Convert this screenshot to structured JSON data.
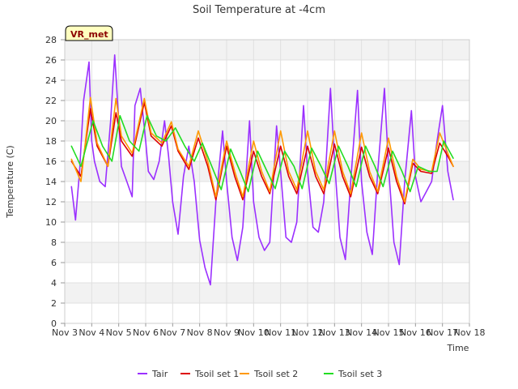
{
  "chart_data": {
    "type": "line",
    "title": "Soil Temperature at -4cm",
    "xlabel": "Time",
    "ylabel": "Temperature (C)",
    "badge": "VR_met",
    "x_ticks": [
      "Nov 3",
      "Nov 4",
      "Nov 5",
      "Nov 6",
      "Nov 7",
      "Nov 8",
      "Nov 9",
      "Nov 10",
      "Nov 11",
      "Nov 12",
      "Nov 13",
      "Nov 14",
      "Nov 15",
      "Nov 16",
      "Nov 17",
      "Nov 18"
    ],
    "xlim_days": [
      3,
      18
    ],
    "ylim": [
      0,
      28
    ],
    "y_ticks": [
      0,
      2,
      4,
      6,
      8,
      10,
      12,
      14,
      16,
      18,
      20,
      22,
      24,
      26,
      28
    ],
    "grid": true,
    "legend_position": "bottom",
    "x_unit": "day of November",
    "series": [
      {
        "name": "Tair",
        "color": "#9b30ff",
        "x": [
          3.25,
          3.4,
          3.55,
          3.7,
          3.9,
          4.0,
          4.1,
          4.3,
          4.5,
          4.7,
          4.85,
          5.0,
          5.1,
          5.3,
          5.5,
          5.6,
          5.8,
          6.0,
          6.1,
          6.3,
          6.5,
          6.7,
          6.85,
          7.0,
          7.2,
          7.4,
          7.6,
          7.8,
          8.0,
          8.2,
          8.4,
          8.6,
          8.85,
          9.0,
          9.2,
          9.4,
          9.6,
          9.85,
          10.0,
          10.2,
          10.4,
          10.6,
          10.85,
          11.0,
          11.2,
          11.4,
          11.6,
          11.85,
          12.0,
          12.2,
          12.4,
          12.6,
          12.85,
          13.0,
          13.2,
          13.4,
          13.6,
          13.85,
          14.0,
          14.2,
          14.4,
          14.6,
          14.85,
          15.0,
          15.2,
          15.4,
          15.6,
          15.85,
          16.0,
          16.2,
          16.4,
          16.6,
          16.8,
          17.0,
          17.2,
          17.4
        ],
        "values": [
          13.5,
          10.2,
          15.0,
          22.0,
          25.8,
          18.0,
          16.0,
          14.0,
          13.5,
          20.0,
          26.5,
          20.0,
          15.5,
          14.0,
          12.5,
          21.5,
          23.2,
          18.0,
          15.0,
          14.2,
          16.0,
          20.0,
          16.5,
          12.0,
          8.8,
          14.5,
          17.5,
          14.0,
          8.2,
          5.5,
          3.8,
          12.0,
          19.0,
          14.0,
          8.5,
          6.2,
          9.5,
          20.0,
          12.0,
          8.5,
          7.2,
          8.0,
          19.5,
          15.0,
          8.5,
          8.0,
          10.0,
          21.5,
          15.0,
          9.5,
          9.0,
          12.0,
          23.2,
          16.0,
          8.5,
          6.3,
          14.0,
          23.0,
          14.0,
          9.0,
          6.8,
          15.0,
          23.2,
          15.5,
          8.0,
          5.8,
          14.0,
          21.0,
          14.5,
          12.0,
          13.0,
          14.0,
          18.0,
          21.5,
          15.0,
          12.2
        ]
      },
      {
        "name": "Tsoil set 1",
        "color": "#dd0000",
        "x": [
          3.25,
          3.6,
          3.95,
          4.2,
          4.6,
          4.9,
          5.1,
          5.5,
          5.95,
          6.2,
          6.6,
          6.95,
          7.2,
          7.6,
          7.95,
          8.3,
          8.6,
          9.0,
          9.3,
          9.6,
          10.0,
          10.3,
          10.6,
          11.0,
          11.3,
          11.6,
          12.0,
          12.3,
          12.6,
          13.0,
          13.3,
          13.6,
          14.0,
          14.3,
          14.6,
          15.0,
          15.3,
          15.6,
          15.9,
          16.2,
          16.6,
          16.9,
          17.2,
          17.4
        ],
        "values": [
          16.0,
          14.5,
          21.2,
          17.5,
          15.5,
          20.8,
          18.0,
          16.5,
          21.8,
          18.5,
          17.5,
          19.5,
          17.0,
          15.2,
          18.3,
          15.5,
          12.2,
          17.5,
          14.5,
          12.2,
          17.0,
          14.5,
          12.8,
          17.5,
          14.5,
          12.8,
          17.5,
          14.5,
          12.8,
          17.7,
          14.5,
          12.5,
          17.4,
          14.5,
          12.8,
          17.3,
          14.0,
          11.8,
          15.8,
          15.0,
          14.8,
          17.8,
          16.5,
          15.5
        ]
      },
      {
        "name": "Tsoil set 2",
        "color": "#ff9900",
        "x": [
          3.25,
          3.6,
          3.95,
          4.2,
          4.6,
          4.9,
          5.1,
          5.5,
          5.95,
          6.2,
          6.6,
          6.95,
          7.2,
          7.6,
          7.95,
          8.3,
          8.6,
          9.0,
          9.3,
          9.6,
          10.0,
          10.3,
          10.6,
          11.0,
          11.3,
          11.6,
          12.0,
          12.3,
          12.6,
          13.0,
          13.3,
          13.6,
          14.0,
          14.3,
          14.6,
          15.0,
          15.3,
          15.6,
          15.9,
          16.2,
          16.6,
          16.9,
          17.2,
          17.4
        ],
        "values": [
          16.2,
          14.0,
          22.3,
          17.8,
          15.5,
          22.2,
          18.5,
          16.8,
          22.2,
          18.8,
          17.8,
          19.9,
          17.2,
          15.5,
          19.0,
          16.0,
          12.5,
          18.0,
          15.0,
          12.5,
          18.0,
          15.0,
          13.0,
          19.0,
          15.0,
          13.2,
          19.0,
          15.0,
          13.2,
          19.0,
          15.0,
          12.8,
          18.8,
          15.0,
          13.0,
          18.3,
          14.5,
          12.0,
          16.2,
          15.2,
          15.0,
          18.8,
          16.8,
          15.5
        ]
      },
      {
        "name": "Tsoil set 3",
        "color": "#22dd22",
        "x": [
          3.25,
          3.6,
          4.05,
          4.4,
          4.75,
          5.05,
          5.4,
          5.75,
          6.05,
          6.4,
          6.75,
          7.1,
          7.45,
          7.8,
          8.1,
          8.45,
          8.8,
          9.15,
          9.5,
          9.8,
          10.15,
          10.5,
          10.8,
          11.15,
          11.5,
          11.8,
          12.15,
          12.5,
          12.8,
          13.15,
          13.5,
          13.8,
          14.15,
          14.5,
          14.8,
          15.15,
          15.5,
          15.8,
          16.1,
          16.5,
          16.8,
          17.05,
          17.4
        ],
        "values": [
          17.5,
          15.5,
          20.0,
          17.5,
          16.0,
          20.5,
          18.0,
          17.0,
          20.5,
          18.5,
          18.0,
          19.3,
          17.5,
          16.0,
          17.8,
          15.5,
          13.2,
          17.2,
          15.0,
          13.0,
          17.0,
          15.0,
          13.3,
          17.0,
          15.5,
          13.3,
          17.3,
          15.5,
          13.8,
          17.5,
          15.5,
          13.5,
          17.5,
          15.5,
          13.5,
          17.0,
          15.0,
          13.0,
          15.5,
          15.0,
          15.0,
          18.0,
          16.3
        ]
      }
    ]
  }
}
